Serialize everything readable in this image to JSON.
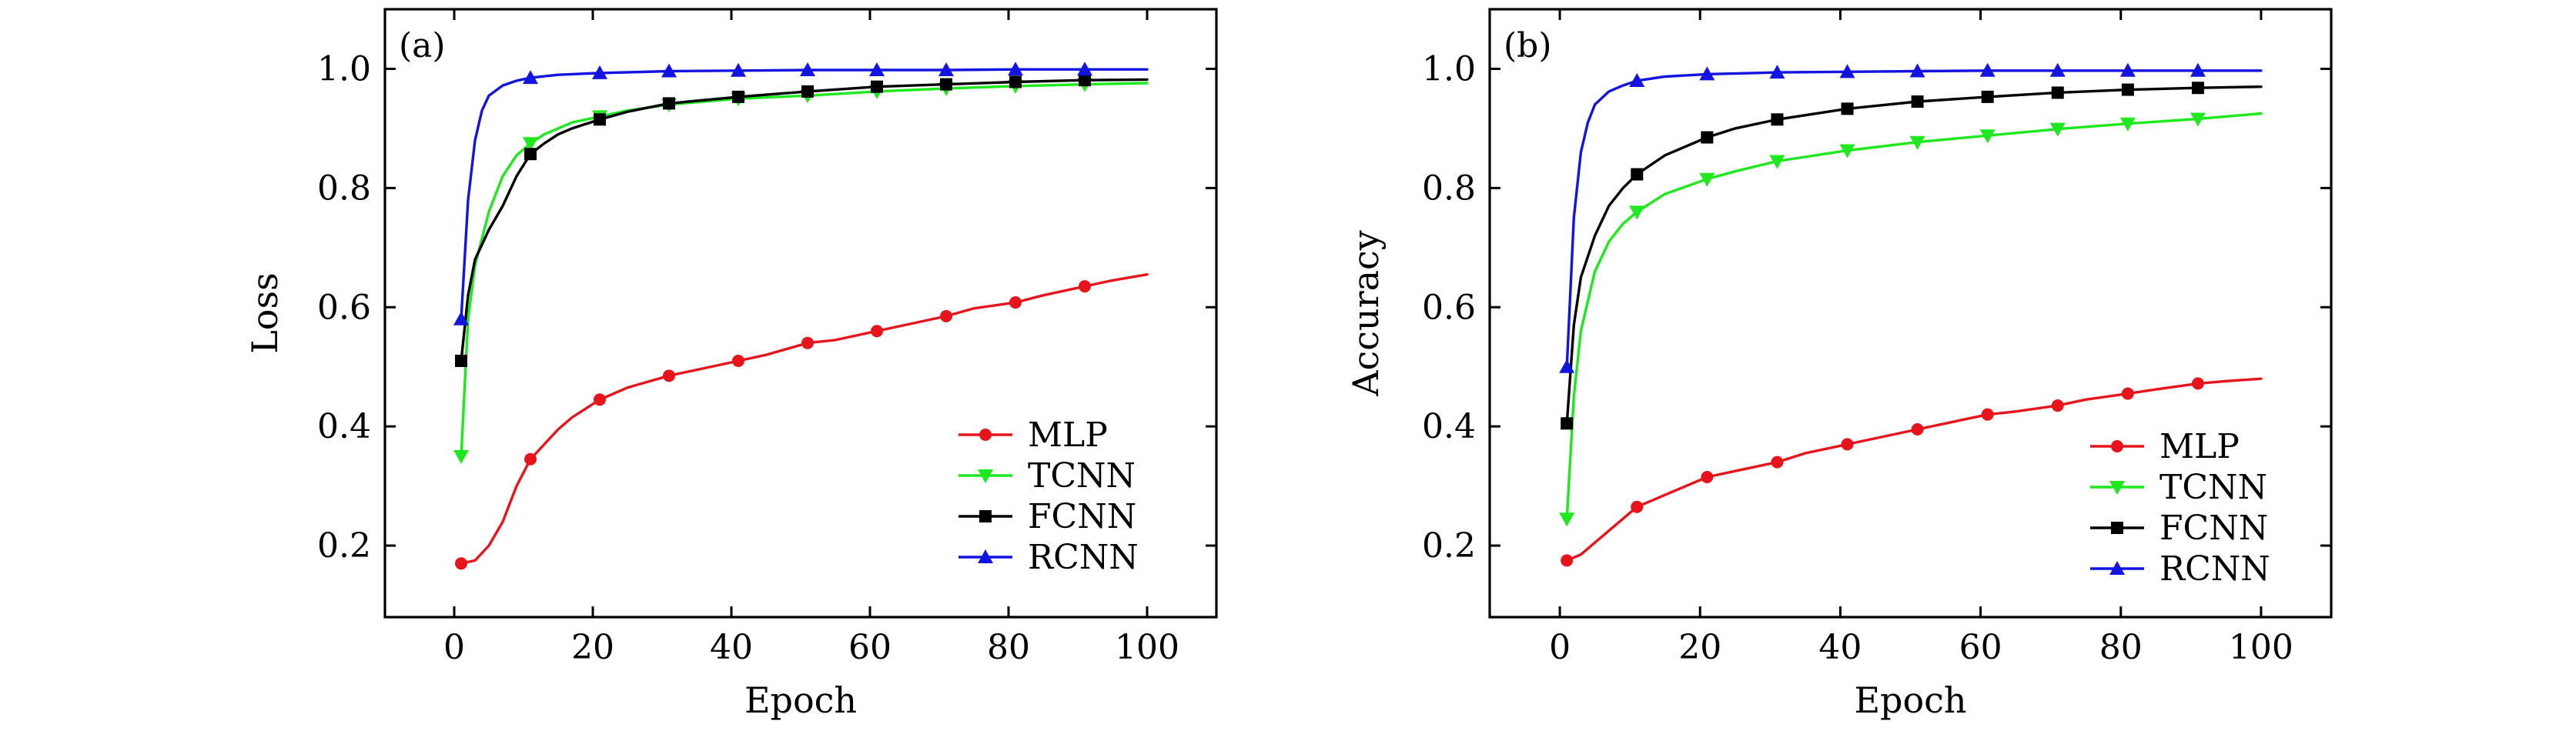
{
  "chart_data": [
    {
      "panel": "(a)",
      "type": "line",
      "title": "",
      "xlabel": "Epoch",
      "ylabel": "Loss",
      "xlim": [
        -10,
        110
      ],
      "ylim": [
        0.08,
        1.1
      ],
      "xticks": [
        0,
        20,
        40,
        60,
        80,
        100
      ],
      "yticks": [
        0.2,
        0.4,
        0.6,
        0.8,
        1.0
      ],
      "xtick_labels": [
        "0",
        "20",
        "40",
        "60",
        "80",
        "100"
      ],
      "ytick_labels": [
        "0.2",
        "0.4",
        "0.6",
        "0.8",
        "1.0"
      ],
      "legend_position": "bottom-right",
      "series": [
        {
          "name": "MLP",
          "color": "#e8141b",
          "marker": "circle",
          "x": [
            1,
            3,
            5,
            7,
            9,
            11,
            13,
            15,
            17,
            19,
            21,
            25,
            31,
            35,
            41,
            45,
            51,
            55,
            61,
            65,
            71,
            75,
            81,
            85,
            91,
            95,
            100
          ],
          "y": [
            0.17,
            0.175,
            0.2,
            0.24,
            0.3,
            0.345,
            0.37,
            0.395,
            0.415,
            0.43,
            0.445,
            0.465,
            0.485,
            0.495,
            0.51,
            0.52,
            0.54,
            0.545,
            0.56,
            0.57,
            0.585,
            0.598,
            0.608,
            0.62,
            0.635,
            0.645,
            0.655
          ],
          "marker_x": [
            1,
            11,
            21,
            31,
            41,
            51,
            61,
            71,
            81,
            91
          ],
          "marker_y": [
            0.17,
            0.345,
            0.445,
            0.485,
            0.51,
            0.54,
            0.56,
            0.585,
            0.608,
            0.635
          ]
        },
        {
          "name": "TCNN",
          "color": "#1ee81e",
          "marker": "triangle-down",
          "x": [
            1,
            2,
            3,
            5,
            7,
            9,
            11,
            13,
            15,
            17,
            21,
            25,
            31,
            41,
            51,
            61,
            71,
            81,
            91,
            100
          ],
          "y": [
            0.35,
            0.58,
            0.67,
            0.76,
            0.82,
            0.855,
            0.875,
            0.89,
            0.9,
            0.91,
            0.92,
            0.93,
            0.94,
            0.95,
            0.955,
            0.962,
            0.967,
            0.971,
            0.974,
            0.976
          ],
          "marker_x": [
            1,
            11,
            21,
            31,
            41,
            51,
            61,
            71,
            81,
            91
          ],
          "marker_y": [
            0.35,
            0.875,
            0.92,
            0.94,
            0.95,
            0.955,
            0.962,
            0.967,
            0.971,
            0.974
          ]
        },
        {
          "name": "FCNN",
          "color": "#000000",
          "marker": "square",
          "x": [
            1,
            2,
            3,
            5,
            7,
            9,
            11,
            13,
            15,
            17,
            21,
            25,
            31,
            41,
            51,
            61,
            71,
            81,
            91,
            100
          ],
          "y": [
            0.51,
            0.62,
            0.68,
            0.73,
            0.77,
            0.82,
            0.857,
            0.875,
            0.89,
            0.9,
            0.915,
            0.928,
            0.942,
            0.953,
            0.962,
            0.97,
            0.974,
            0.978,
            0.981,
            0.982
          ],
          "marker_x": [
            1,
            11,
            21,
            31,
            41,
            51,
            61,
            71,
            81,
            91
          ],
          "marker_y": [
            0.51,
            0.857,
            0.915,
            0.942,
            0.953,
            0.962,
            0.97,
            0.974,
            0.978,
            0.981
          ]
        },
        {
          "name": "RCNN",
          "color": "#1414e0",
          "marker": "triangle-up",
          "x": [
            1,
            2,
            3,
            4,
            5,
            7,
            9,
            11,
            15,
            21,
            31,
            41,
            51,
            61,
            71,
            81,
            91,
            100
          ],
          "y": [
            0.58,
            0.78,
            0.88,
            0.93,
            0.955,
            0.972,
            0.98,
            0.985,
            0.99,
            0.993,
            0.996,
            0.997,
            0.998,
            0.998,
            0.998,
            0.999,
            0.999,
            0.999
          ],
          "marker_x": [
            1,
            11,
            21,
            31,
            41,
            51,
            61,
            71,
            81,
            91
          ],
          "marker_y": [
            0.58,
            0.985,
            0.993,
            0.996,
            0.997,
            0.998,
            0.998,
            0.998,
            0.999,
            0.999
          ]
        }
      ]
    },
    {
      "panel": "(b)",
      "type": "line",
      "title": "",
      "xlabel": "Epoch",
      "ylabel": "Accuracy",
      "xlim": [
        -10,
        110
      ],
      "ylim": [
        0.08,
        1.1
      ],
      "xticks": [
        0,
        20,
        40,
        60,
        80,
        100
      ],
      "yticks": [
        0.2,
        0.4,
        0.6,
        0.8,
        1.0
      ],
      "xtick_labels": [
        "0",
        "20",
        "40",
        "60",
        "80",
        "100"
      ],
      "ytick_labels": [
        "0.2",
        "0.4",
        "0.6",
        "0.8",
        "1.0"
      ],
      "legend_position": "bottom-right",
      "series": [
        {
          "name": "MLP",
          "color": "#e8141b",
          "marker": "circle",
          "x": [
            1,
            3,
            5,
            7,
            9,
            11,
            15,
            21,
            25,
            31,
            35,
            41,
            45,
            51,
            55,
            61,
            65,
            71,
            75,
            81,
            85,
            91,
            95,
            100
          ],
          "y": [
            0.175,
            0.185,
            0.205,
            0.225,
            0.245,
            0.265,
            0.285,
            0.315,
            0.325,
            0.34,
            0.355,
            0.37,
            0.38,
            0.395,
            0.405,
            0.42,
            0.425,
            0.435,
            0.445,
            0.455,
            0.462,
            0.472,
            0.476,
            0.48
          ],
          "marker_x": [
            1,
            11,
            21,
            31,
            41,
            51,
            61,
            71,
            81,
            91
          ],
          "marker_y": [
            0.175,
            0.265,
            0.315,
            0.34,
            0.37,
            0.395,
            0.42,
            0.435,
            0.455,
            0.472
          ]
        },
        {
          "name": "TCNN",
          "color": "#1ee81e",
          "marker": "triangle-down",
          "x": [
            1,
            2,
            3,
            5,
            7,
            9,
            11,
            15,
            21,
            25,
            31,
            41,
            51,
            61,
            71,
            81,
            91,
            100
          ],
          "y": [
            0.245,
            0.45,
            0.56,
            0.66,
            0.71,
            0.74,
            0.76,
            0.79,
            0.815,
            0.828,
            0.845,
            0.863,
            0.877,
            0.888,
            0.899,
            0.908,
            0.916,
            0.925
          ],
          "marker_x": [
            1,
            11,
            21,
            31,
            41,
            51,
            61,
            71,
            81,
            91
          ],
          "marker_y": [
            0.245,
            0.76,
            0.815,
            0.845,
            0.863,
            0.877,
            0.888,
            0.899,
            0.908,
            0.916
          ]
        },
        {
          "name": "FCNN",
          "color": "#000000",
          "marker": "square",
          "x": [
            1,
            2,
            3,
            5,
            7,
            9,
            11,
            15,
            21,
            25,
            31,
            41,
            51,
            61,
            71,
            81,
            91,
            100
          ],
          "y": [
            0.405,
            0.57,
            0.65,
            0.72,
            0.77,
            0.8,
            0.823,
            0.855,
            0.885,
            0.9,
            0.915,
            0.933,
            0.945,
            0.953,
            0.96,
            0.965,
            0.968,
            0.97
          ],
          "marker_x": [
            1,
            11,
            21,
            31,
            41,
            51,
            61,
            71,
            81,
            91
          ],
          "marker_y": [
            0.405,
            0.823,
            0.885,
            0.915,
            0.933,
            0.945,
            0.953,
            0.96,
            0.965,
            0.968
          ]
        },
        {
          "name": "RCNN",
          "color": "#1414e0",
          "marker": "triangle-up",
          "x": [
            1,
            2,
            3,
            4,
            5,
            7,
            9,
            11,
            15,
            21,
            31,
            41,
            51,
            61,
            71,
            81,
            91,
            100
          ],
          "y": [
            0.5,
            0.75,
            0.86,
            0.91,
            0.94,
            0.962,
            0.972,
            0.98,
            0.987,
            0.991,
            0.994,
            0.995,
            0.996,
            0.997,
            0.997,
            0.997,
            0.997,
            0.997
          ],
          "marker_x": [
            1,
            11,
            21,
            31,
            41,
            51,
            61,
            71,
            81,
            91
          ],
          "marker_y": [
            0.5,
            0.98,
            0.991,
            0.994,
            0.995,
            0.996,
            0.997,
            0.997,
            0.997,
            0.997
          ]
        }
      ]
    }
  ]
}
